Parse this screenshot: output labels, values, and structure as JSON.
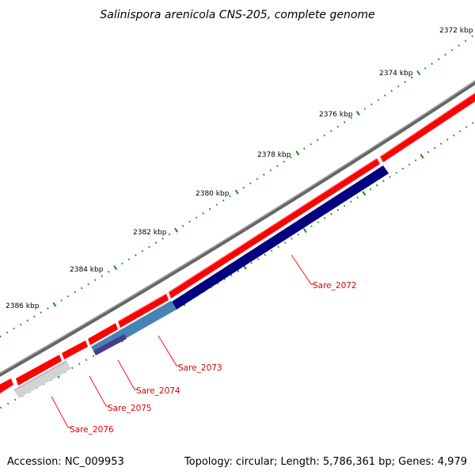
{
  "title": "Salinispora arenicola CNS-205, complete genome",
  "footer": {
    "accession": "Accession: NC_009953",
    "summary": "Topology: circular; Length: 5,786,361 bp; Genes: 4,979"
  },
  "tick_labels": [
    "2372 kbp",
    "2374 kbp",
    "2376 kbp",
    "2378 kbp",
    "2380 kbp",
    "2382 kbp",
    "2384 kbp",
    "2386 kbp"
  ],
  "gene_labels": [
    "Sare_2072",
    "Sare_2073",
    "Sare_2074",
    "Sare_2075",
    "Sare_2076"
  ],
  "colors": {
    "backbone": "#777777",
    "cds": "#ff0000",
    "tick": "#1a8a1a",
    "label": "#e00000",
    "leader": "#ff0000",
    "gene_2072": "#000080",
    "gene_2073": "#4682b4",
    "gene_2074": "#483d8b",
    "gene_2075": "#d3d3d3"
  }
}
